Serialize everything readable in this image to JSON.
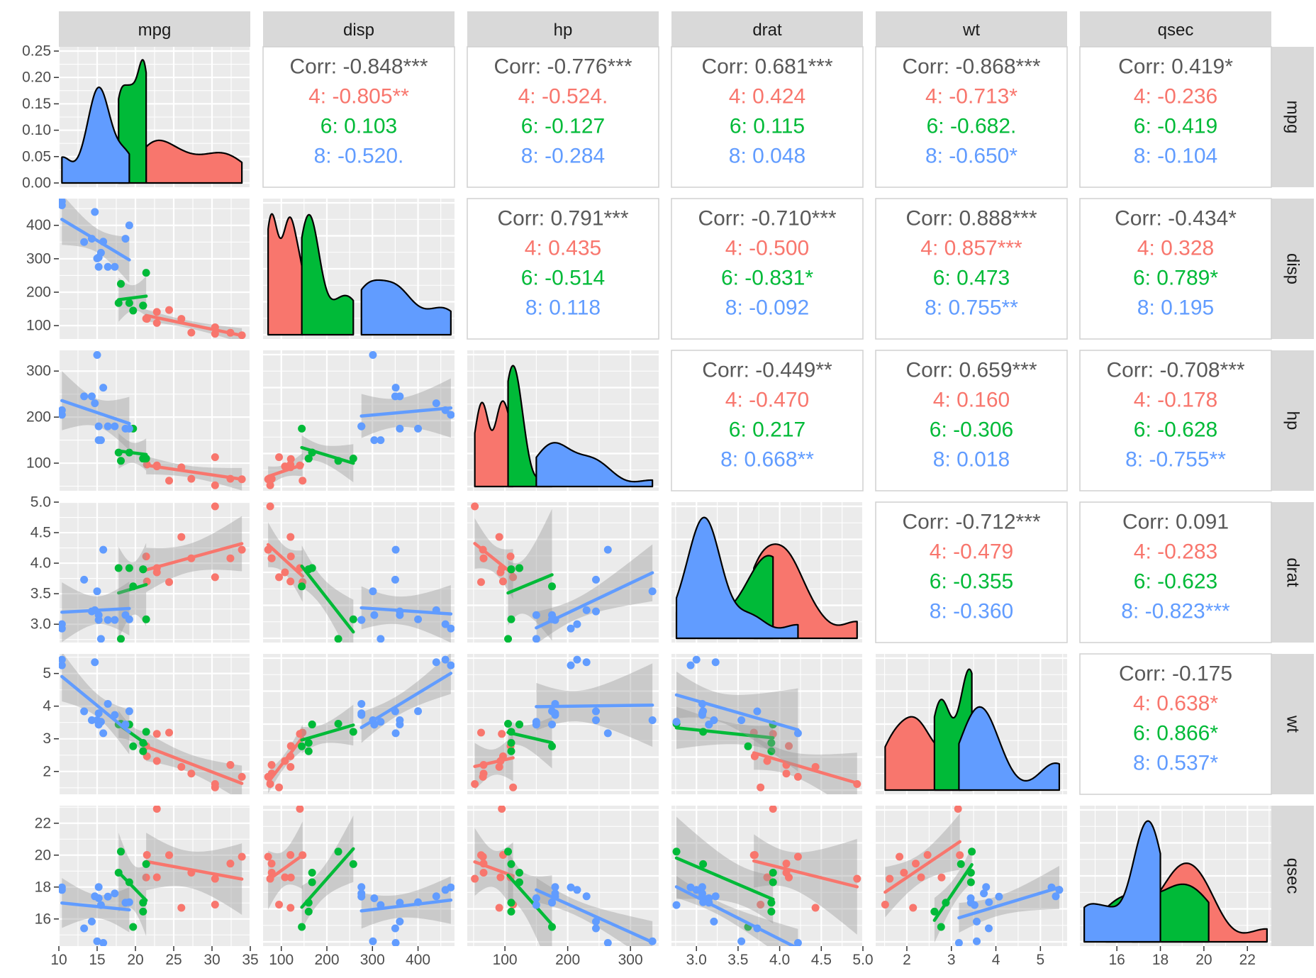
{
  "chart_data": {
    "type": "pairs",
    "description": "Generalized pairs plot of mtcars variables, colored by cylinder count",
    "variables": [
      "mpg",
      "disp",
      "hp",
      "drat",
      "wt",
      "qsec"
    ],
    "groups": [
      {
        "name": "4",
        "color": "#F8766D"
      },
      {
        "name": "6",
        "color": "#00BA38"
      },
      {
        "name": "8",
        "color": "#619CFF"
      }
    ],
    "axes": {
      "mpg": {
        "range": [
          10,
          35
        ],
        "ticks": [
          10,
          15,
          20,
          25,
          30,
          35
        ],
        "tick_labels": [
          "10",
          "15",
          "20",
          "25",
          "30",
          "35"
        ]
      },
      "disp": {
        "range": [
          60,
          480
        ],
        "ticks": [
          100,
          200,
          300,
          400
        ],
        "tick_labels": [
          "100",
          "200",
          "300",
          "400"
        ]
      },
      "hp": {
        "range": [
          40,
          345
        ],
        "ticks": [
          100,
          200,
          300
        ],
        "tick_labels": [
          "100",
          "200",
          "300"
        ]
      },
      "drat": {
        "range": [
          2.7,
          5.0
        ],
        "ticks": [
          3.0,
          3.5,
          4.0,
          4.5,
          5.0
        ],
        "tick_labels": [
          "3.0",
          "3.5",
          "4.0",
          "4.5",
          "5.0"
        ]
      },
      "wt": {
        "range": [
          1.3,
          5.6
        ],
        "ticks": [
          2,
          3,
          4,
          5
        ],
        "tick_labels": [
          "2",
          "3",
          "4",
          "5"
        ]
      },
      "qsec": {
        "range": [
          14.3,
          23.1
        ],
        "ticks": [
          16,
          18,
          20,
          22
        ],
        "tick_labels": [
          "16",
          "18",
          "20",
          "22"
        ]
      }
    },
    "density_y_axis": {
      "range": [
        0,
        0.25
      ],
      "ticks": [
        0,
        0.05,
        0.1,
        0.15,
        0.2,
        0.25
      ],
      "tick_labels": [
        "0.00",
        "0.05",
        "0.10",
        "0.15",
        "0.20",
        "0.25"
      ]
    },
    "correlations": [
      {
        "row": "mpg",
        "col": "disp",
        "overall": "Corr: -0.848***",
        "groups": [
          "4: -0.805**",
          "6: 0.103",
          "8: -0.520."
        ]
      },
      {
        "row": "mpg",
        "col": "hp",
        "overall": "Corr: -0.776***",
        "groups": [
          "4: -0.524.",
          "6: -0.127",
          "8: -0.284"
        ]
      },
      {
        "row": "mpg",
        "col": "drat",
        "overall": "Corr: 0.681***",
        "groups": [
          "4: 0.424",
          "6: 0.115",
          "8: 0.048"
        ]
      },
      {
        "row": "mpg",
        "col": "wt",
        "overall": "Corr: -0.868***",
        "groups": [
          "4: -0.713*",
          "6: -0.682.",
          "8: -0.650*"
        ]
      },
      {
        "row": "mpg",
        "col": "qsec",
        "overall": "Corr: 0.419*",
        "groups": [
          "4: -0.236",
          "6: -0.419",
          "8: -0.104"
        ]
      },
      {
        "row": "disp",
        "col": "hp",
        "overall": "Corr: 0.791***",
        "groups": [
          "4: 0.435",
          "6: -0.514",
          "8: 0.118"
        ]
      },
      {
        "row": "disp",
        "col": "drat",
        "overall": "Corr: -0.710***",
        "groups": [
          "4: -0.500",
          "6: -0.831*",
          "8: -0.092"
        ]
      },
      {
        "row": "disp",
        "col": "wt",
        "overall": "Corr: 0.888***",
        "groups": [
          "4: 0.857***",
          "6: 0.473",
          "8: 0.755**"
        ]
      },
      {
        "row": "disp",
        "col": "qsec",
        "overall": "Corr: -0.434*",
        "groups": [
          "4: 0.328",
          "6: 0.789*",
          "8: 0.195"
        ]
      },
      {
        "row": "hp",
        "col": "drat",
        "overall": "Corr: -0.449**",
        "groups": [
          "4: -0.470",
          "6: 0.217",
          "8: 0.668**"
        ]
      },
      {
        "row": "hp",
        "col": "wt",
        "overall": "Corr: 0.659***",
        "groups": [
          "4: 0.160",
          "6: -0.306",
          "8: 0.018"
        ]
      },
      {
        "row": "hp",
        "col": "qsec",
        "overall": "Corr: -0.708***",
        "groups": [
          "4: -0.178",
          "6: -0.628",
          "8: -0.755**"
        ]
      },
      {
        "row": "drat",
        "col": "wt",
        "overall": "Corr: -0.712***",
        "groups": [
          "4: -0.479",
          "6: -0.355",
          "8: -0.360"
        ]
      },
      {
        "row": "drat",
        "col": "qsec",
        "overall": "Corr: 0.091",
        "groups": [
          "4: -0.283",
          "6: -0.623",
          "8: -0.823***"
        ]
      },
      {
        "row": "wt",
        "col": "qsec",
        "overall": "Corr: -0.175",
        "groups": [
          "4: 0.638*",
          "6: 0.866*",
          "8: 0.537*"
        ]
      }
    ],
    "observations": {
      "mpg": [
        21,
        21,
        22.8,
        21.4,
        18.7,
        18.1,
        14.3,
        24.4,
        22.8,
        19.2,
        17.8,
        16.4,
        17.3,
        15.2,
        10.4,
        10.4,
        14.7,
        32.4,
        30.4,
        33.9,
        21.5,
        15.5,
        15.2,
        13.3,
        19.2,
        27.3,
        26,
        30.4,
        15.8,
        19.7,
        15,
        21.4
      ],
      "cyl": [
        6,
        6,
        4,
        6,
        8,
        6,
        8,
        4,
        4,
        6,
        6,
        8,
        8,
        8,
        8,
        8,
        8,
        4,
        4,
        4,
        4,
        8,
        8,
        8,
        8,
        4,
        4,
        4,
        8,
        6,
        8,
        4
      ],
      "disp": [
        160,
        160,
        108,
        258,
        360,
        225,
        360,
        146.7,
        140.8,
        167.6,
        167.6,
        275.8,
        275.8,
        275.8,
        472,
        460,
        440,
        78.7,
        75.7,
        71.1,
        120.1,
        318,
        304,
        350,
        400,
        79,
        120.3,
        95.1,
        351,
        145,
        301,
        121
      ],
      "hp": [
        110,
        110,
        93,
        110,
        175,
        105,
        245,
        62,
        95,
        123,
        123,
        180,
        180,
        180,
        205,
        215,
        230,
        66,
        52,
        65,
        97,
        150,
        150,
        245,
        175,
        66,
        91,
        113,
        264,
        175,
        335,
        109
      ],
      "drat": [
        3.9,
        3.9,
        3.85,
        3.08,
        3.15,
        2.76,
        3.21,
        3.69,
        3.92,
        3.92,
        3.92,
        3.07,
        3.07,
        3.07,
        2.93,
        3,
        3.23,
        4.08,
        4.93,
        4.22,
        3.7,
        2.76,
        3.15,
        3.73,
        3.08,
        4.08,
        4.43,
        3.77,
        4.22,
        3.62,
        3.54,
        4.11
      ],
      "wt": [
        2.62,
        2.875,
        2.32,
        3.215,
        3.44,
        3.46,
        3.57,
        3.19,
        3.15,
        3.44,
        3.44,
        4.07,
        3.73,
        3.78,
        5.25,
        5.424,
        5.345,
        2.2,
        1.615,
        1.835,
        2.465,
        3.52,
        3.435,
        3.84,
        3.845,
        1.935,
        2.14,
        1.513,
        3.17,
        2.77,
        3.57,
        2.78
      ],
      "qsec": [
        16.46,
        17.02,
        18.61,
        19.44,
        17.02,
        20.22,
        15.84,
        20,
        22.9,
        18.3,
        18.9,
        17.4,
        17.6,
        18,
        17.98,
        17.82,
        17.42,
        19.47,
        18.52,
        19.9,
        20.01,
        16.87,
        17.3,
        15.41,
        17.05,
        18.9,
        16.7,
        16.9,
        14.5,
        15.5,
        14.6,
        18.6
      ]
    }
  }
}
